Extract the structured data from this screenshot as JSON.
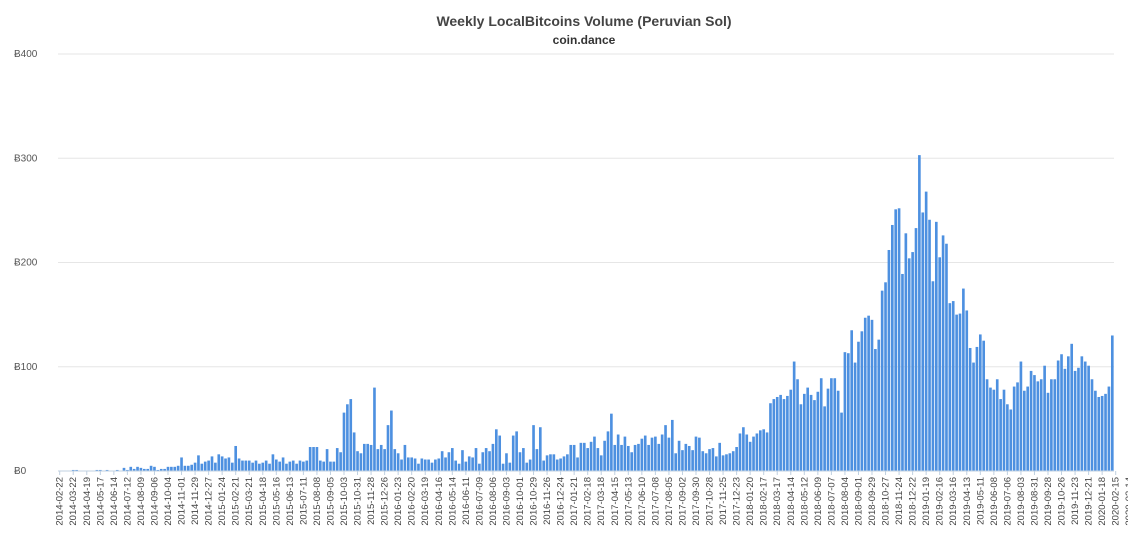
{
  "chart_data": {
    "type": "bar",
    "title": "Weekly LocalBitcoins Volume (Peruvian Sol)",
    "subtitle": "coin.dance",
    "currency_prefix": "Ƀ",
    "ylim": [
      0,
      400
    ],
    "yticks": [
      0,
      100,
      200,
      300,
      400
    ],
    "grid": true,
    "bar_color": "#4d90e0",
    "x_tick_labels": [
      "2014-02-22",
      "2014-03-22",
      "2014-04-19",
      "2014-05-17",
      "2014-06-14",
      "2014-07-12",
      "2014-08-09",
      "2014-09-06",
      "2014-10-04",
      "2014-11-01",
      "2014-11-29",
      "2014-12-27",
      "2015-01-24",
      "2015-02-21",
      "2015-03-21",
      "2015-04-18",
      "2015-05-16",
      "2015-06-13",
      "2015-07-11",
      "2015-08-08",
      "2015-09-05",
      "2015-10-03",
      "2015-10-31",
      "2015-11-28",
      "2015-12-26",
      "2016-01-23",
      "2016-02-20",
      "2016-03-19",
      "2016-04-16",
      "2016-05-14",
      "2016-06-11",
      "2016-07-09",
      "2016-08-06",
      "2016-09-03",
      "2016-10-01",
      "2016-10-29",
      "2016-11-26",
      "2016-12-24",
      "2017-01-21",
      "2017-02-18",
      "2017-03-18",
      "2017-04-15",
      "2017-05-13",
      "2017-06-10",
      "2017-07-08",
      "2017-08-05",
      "2017-09-02",
      "2017-09-30",
      "2017-10-28",
      "2017-11-25",
      "2017-12-23",
      "2018-01-20",
      "2018-02-17",
      "2018-03-17",
      "2018-04-14",
      "2018-05-12",
      "2018-06-09",
      "2018-07-07",
      "2018-08-04",
      "2018-09-01",
      "2018-09-29",
      "2018-10-27",
      "2018-11-24",
      "2018-12-22",
      "2019-01-19",
      "2019-02-16",
      "2019-03-16",
      "2019-04-13",
      "2019-05-11",
      "2019-06-08",
      "2019-07-06",
      "2019-08-03",
      "2019-08-31",
      "2019-09-28",
      "2019-10-26",
      "2019-11-23",
      "2019-12-21",
      "2020-01-18",
      "2020-02-15",
      "2020-03-14"
    ],
    "values": [
      0,
      0,
      0,
      0,
      1,
      1,
      0,
      0,
      0,
      0,
      0,
      1,
      1,
      0,
      1,
      0,
      0,
      1,
      0,
      3,
      1,
      4,
      2,
      4,
      3,
      2,
      2,
      5,
      4,
      1,
      2,
      2,
      4,
      4,
      4,
      5,
      13,
      5,
      5,
      6,
      8,
      15,
      7,
      9,
      10,
      14,
      8,
      16,
      14,
      12,
      13,
      8,
      24,
      12,
      10,
      10,
      10,
      8,
      10,
      7,
      8,
      10,
      7,
      16,
      11,
      9,
      13,
      7,
      9,
      10,
      7,
      10,
      9,
      10,
      23,
      23,
      23,
      10,
      9,
      21,
      9,
      9,
      22,
      18,
      56,
      64,
      69,
      37,
      19,
      17,
      26,
      26,
      25,
      80,
      21,
      25,
      21,
      44,
      58,
      21,
      17,
      11,
      25,
      13,
      13,
      12,
      7,
      12,
      11,
      11,
      8,
      11,
      12,
      19,
      13,
      18,
      22,
      10,
      7,
      20,
      9,
      14,
      13,
      22,
      7,
      18,
      22,
      19,
      26,
      40,
      34,
      7,
      17,
      8,
      34,
      38,
      18,
      22,
      8,
      11,
      44,
      21,
      42,
      10,
      15,
      16,
      16,
      11,
      12,
      14,
      16,
      25,
      25,
      13,
      27,
      27,
      22,
      28,
      33,
      22,
      15,
      29,
      38,
      55,
      25,
      35,
      25,
      33,
      24,
      18,
      25,
      26,
      31,
      34,
      25,
      32,
      33,
      26,
      35,
      44,
      32,
      49,
      17,
      29,
      20,
      26,
      24,
      20,
      33,
      32,
      19,
      17,
      21,
      22,
      14,
      27,
      15,
      16,
      17,
      19,
      23,
      36,
      42,
      35,
      28,
      33,
      36,
      39,
      40,
      37,
      65,
      69,
      71,
      73,
      69,
      72,
      78,
      105,
      88,
      64,
      74,
      80,
      73,
      68,
      76,
      89,
      62,
      79,
      89,
      89,
      77,
      56,
      114,
      113,
      135,
      104,
      124,
      134,
      147,
      149,
      145,
      117,
      126,
      173,
      181,
      212,
      236,
      251,
      252,
      189,
      228,
      204,
      210,
      233,
      303,
      248,
      268,
      241,
      182,
      239,
      205,
      226,
      218,
      161,
      163,
      150,
      151,
      175,
      154,
      118,
      104,
      119,
      131,
      125,
      88,
      80,
      78,
      88,
      69,
      78,
      64,
      59,
      81,
      85,
      105,
      77,
      81,
      96,
      92,
      86,
      88,
      101,
      75,
      88,
      88,
      106,
      112,
      98,
      110,
      122,
      96,
      99,
      110,
      105,
      101,
      88,
      77,
      71,
      72,
      74,
      81,
      130
    ]
  }
}
